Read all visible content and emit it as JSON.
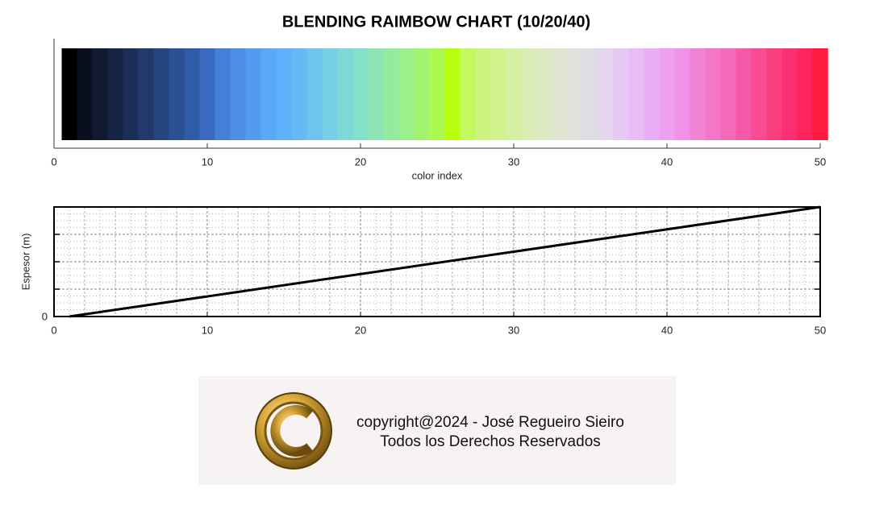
{
  "chart_data": [
    {
      "type": "colorbar",
      "title": "BLENDING RAIMBOW CHART (10/20/40)",
      "xlabel": "color index",
      "x": [
        1,
        2,
        3,
        4,
        5,
        6,
        7,
        8,
        9,
        10,
        11,
        12,
        13,
        14,
        15,
        16,
        17,
        18,
        19,
        20,
        21,
        22,
        23,
        24,
        25,
        26,
        27,
        28,
        29,
        30,
        31,
        32,
        33,
        34,
        35,
        36,
        37,
        38,
        39,
        40,
        41,
        42,
        43,
        44,
        45,
        46,
        47,
        48,
        49,
        50
      ],
      "colors": [
        "#000000",
        "#0a0f20",
        "#111a33",
        "#172544",
        "#1c2f58",
        "#213a6b",
        "#26457f",
        "#2b5093",
        "#305ba7",
        "#3a6ac0",
        "#4480d8",
        "#4c8ee6",
        "#539bf0",
        "#5aa8f8",
        "#5eb0fa",
        "#66b9f2",
        "#6ec4ec",
        "#76cfe4",
        "#7ed8d8",
        "#86dfc8",
        "#8ee4b4",
        "#94eaa0",
        "#9af08a",
        "#a2f470",
        "#aafa50",
        "#b8ff10",
        "#c4f860",
        "#ccf47e",
        "#d0f290",
        "#d4f0a0",
        "#d8ecb4",
        "#dce8c4",
        "#dee4d0",
        "#e0e0dc",
        "#e0dce4",
        "#e4d4ec",
        "#e6c8f4",
        "#e8bcf6",
        "#eaaef6",
        "#eea0f0",
        "#f092e8",
        "#f284d8",
        "#f476c8",
        "#f668b8",
        "#f65aa6",
        "#f84c94",
        "#fa3e80",
        "#fc3070",
        "#fe245c",
        "#ff1a40"
      ],
      "xlim": [
        0,
        50
      ],
      "xticks": [
        0,
        10,
        20,
        30,
        40,
        50
      ]
    },
    {
      "type": "line",
      "ylabel": "Espesor (m)",
      "x": [
        1,
        50
      ],
      "series": [
        {
          "color": "#000000",
          "values": [
            0,
            4
          ]
        }
      ],
      "xlim": [
        0,
        50
      ],
      "xticks": [
        0,
        10,
        20,
        30,
        40,
        50
      ],
      "ylim": [
        0,
        4
      ],
      "yticks": [
        0
      ],
      "ytick_marks": [
        0,
        1,
        2,
        3,
        4
      ],
      "minor_grid": true
    }
  ],
  "footer": {
    "lines": [
      "copyright@2024 - José Regueiro Sieiro",
      "Todos los Derechos Reservados"
    ]
  }
}
